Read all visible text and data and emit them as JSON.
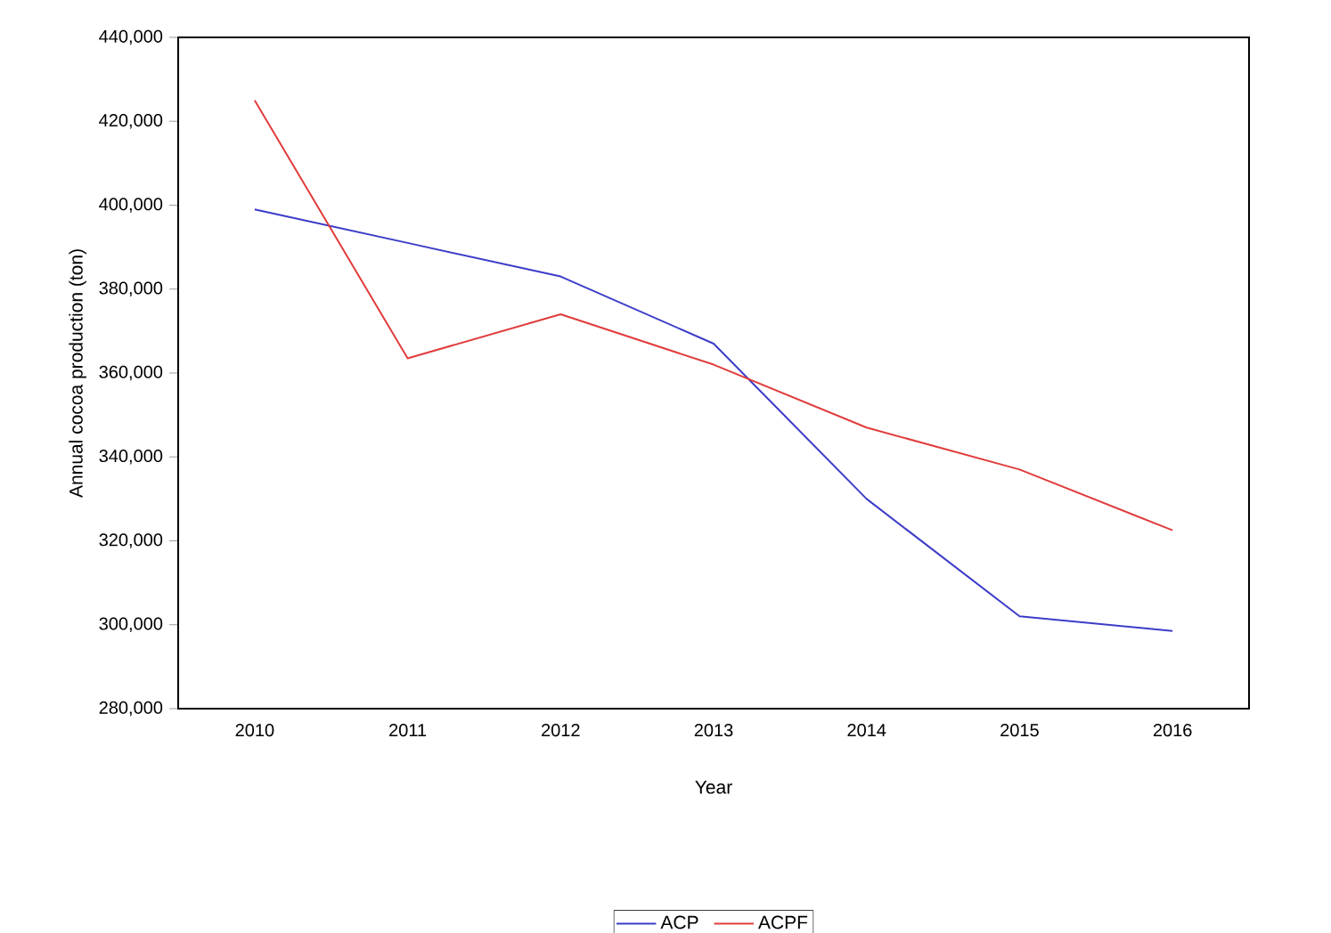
{
  "chart_data": {
    "type": "line",
    "xlabel": "Year",
    "ylabel": "Annual cocoa production (ton)",
    "categories": [
      "2010",
      "2011",
      "2012",
      "2013",
      "2014",
      "2015",
      "2016"
    ],
    "series": [
      {
        "name": "ACP",
        "color": "#3c3cc8",
        "values": [
          399000,
          391000,
          383000,
          367000,
          330000,
          302000,
          298500
        ]
      },
      {
        "name": "ACPF",
        "color": "#e03c3c",
        "values": [
          425000,
          363500,
          374000,
          362000,
          347000,
          337000,
          322500
        ]
      }
    ],
    "ylim": [
      280000,
      440000
    ],
    "yticks": [
      {
        "value": 280000,
        "label": "280,000"
      },
      {
        "value": 300000,
        "label": "300,000"
      },
      {
        "value": 320000,
        "label": "320,000"
      },
      {
        "value": 340000,
        "label": "340,000"
      },
      {
        "value": 360000,
        "label": "360,000"
      },
      {
        "value": 380000,
        "label": "380,000"
      },
      {
        "value": 400000,
        "label": "400,000"
      },
      {
        "value": 420000,
        "label": "420,000"
      },
      {
        "value": 440000,
        "label": "440,000"
      }
    ],
    "grid": false,
    "legend": "bottom",
    "marker": "none",
    "line_style": "solid"
  }
}
